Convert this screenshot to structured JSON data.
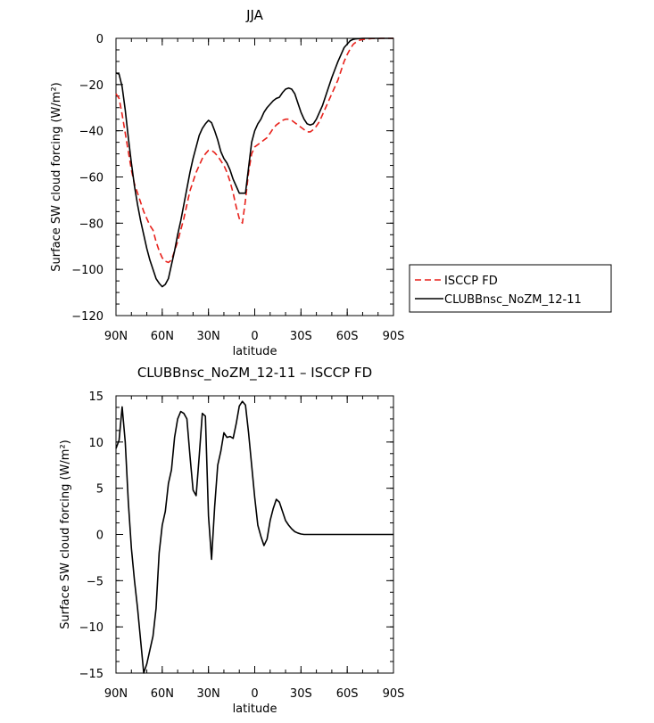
{
  "chart_data": [
    {
      "type": "line",
      "title": "JJA",
      "xlabel": "latitude",
      "ylabel": "Surface SW cloud forcing (W/m²)",
      "xlim": [
        90,
        -90
      ],
      "ylim": [
        -120,
        0
      ],
      "x_ticks": [
        {
          "value": 90,
          "label": "90N"
        },
        {
          "value": 60,
          "label": "60N"
        },
        {
          "value": 30,
          "label": "30N"
        },
        {
          "value": 0,
          "label": "0"
        },
        {
          "value": -30,
          "label": "30S"
        },
        {
          "value": -60,
          "label": "60S"
        },
        {
          "value": -90,
          "label": "90S"
        }
      ],
      "y_ticks": [
        0,
        -20,
        -40,
        -60,
        -80,
        -100,
        -120
      ],
      "legend_position": "right",
      "series": [
        {
          "name": "ISCCP FD",
          "color": "#e8211b",
          "dash": true,
          "x": [
            90,
            88,
            86,
            84,
            82,
            80,
            78,
            76,
            74,
            72,
            70,
            68,
            66,
            64,
            62,
            60,
            58,
            56,
            54,
            52,
            50,
            48,
            46,
            44,
            42,
            40,
            38,
            36,
            34,
            32,
            30,
            28,
            26,
            24,
            22,
            20,
            18,
            16,
            14,
            12,
            10,
            8,
            6,
            4,
            2,
            0,
            -2,
            -4,
            -6,
            -8,
            -10,
            -12,
            -14,
            -16,
            -18,
            -20,
            -22,
            -24,
            -26,
            -28,
            -30,
            -32,
            -34,
            -36,
            -38,
            -40,
            -42,
            -44,
            -46,
            -48,
            -50,
            -52,
            -54,
            -56,
            -58,
            -60,
            -62,
            -64,
            -66,
            -68,
            -70,
            -72,
            -74,
            -76,
            -78,
            -80,
            -82,
            -84,
            -86,
            -88,
            -90
          ],
          "y": [
            -24,
            -26,
            -33,
            -41,
            -49,
            -57,
            -63,
            -67,
            -71,
            -75,
            -78,
            -81,
            -83,
            -88,
            -92,
            -95,
            -96.5,
            -97,
            -96,
            -92,
            -88,
            -83,
            -78,
            -72,
            -66,
            -62,
            -58,
            -55,
            -52,
            -50,
            -48.5,
            -48.5,
            -49.5,
            -51,
            -53,
            -55,
            -58,
            -62,
            -67,
            -73,
            -78,
            -80,
            -70,
            -58,
            -50,
            -47,
            -46,
            -45,
            -44,
            -43,
            -41,
            -39,
            -37.5,
            -36.5,
            -35.5,
            -35,
            -35,
            -35.5,
            -36.5,
            -37.5,
            -38.5,
            -39.5,
            -40.5,
            -40.5,
            -39.5,
            -38,
            -36,
            -33,
            -30,
            -27,
            -24,
            -21,
            -18,
            -14,
            -10,
            -7,
            -4.5,
            -2.5,
            -1.5,
            -0.8,
            -0.5,
            -0.3,
            -0.2,
            -0.1,
            -0.1,
            -0.1,
            0,
            0,
            0,
            0,
            0
          ]
        },
        {
          "name": "CLUBBnsc_NoZM_12-11",
          "color": "#000000",
          "dash": false,
          "x": [
            90,
            88,
            86,
            84,
            82,
            80,
            78,
            76,
            74,
            72,
            70,
            68,
            66,
            64,
            62,
            60,
            58,
            56,
            54,
            52,
            50,
            48,
            46,
            44,
            42,
            40,
            38,
            36,
            34,
            32,
            30,
            28,
            26,
            24,
            22,
            20,
            18,
            16,
            14,
            12,
            10,
            8,
            6,
            4,
            2,
            0,
            -2,
            -4,
            -6,
            -8,
            -10,
            -12,
            -14,
            -16,
            -18,
            -20,
            -22,
            -24,
            -26,
            -28,
            -30,
            -32,
            -34,
            -36,
            -38,
            -40,
            -42,
            -44,
            -46,
            -48,
            -50,
            -52,
            -54,
            -56,
            -58,
            -60,
            -62,
            -64,
            -66,
            -68,
            -70,
            -72,
            -74,
            -76,
            -78,
            -80,
            -82,
            -84,
            -86,
            -88,
            -90
          ],
          "y": [
            -15,
            -15.5,
            -21,
            -31,
            -43,
            -54,
            -64,
            -72,
            -79,
            -85,
            -91,
            -96,
            -100,
            -104,
            -106,
            -107.5,
            -106.5,
            -104,
            -98,
            -92,
            -85,
            -79,
            -72,
            -65,
            -58,
            -52,
            -47,
            -42,
            -39,
            -37,
            -35.5,
            -36.5,
            -40,
            -44,
            -49,
            -52,
            -54,
            -57,
            -61,
            -64,
            -67,
            -67,
            -67,
            -56,
            -45,
            -40,
            -37,
            -35,
            -32,
            -30,
            -28.5,
            -27,
            -26,
            -25.5,
            -23.5,
            -22,
            -21.5,
            -22,
            -24,
            -28,
            -32,
            -35,
            -37,
            -37.5,
            -37,
            -35,
            -32,
            -29,
            -25,
            -21,
            -17,
            -13.5,
            -10,
            -7,
            -4,
            -2.5,
            -1,
            -0.4,
            -0.2,
            -0.1,
            0,
            0,
            0,
            0,
            0,
            0,
            0,
            0,
            0,
            0,
            0
          ]
        }
      ]
    },
    {
      "type": "line",
      "title": "CLUBBnsc_NoZM_12-11 – ISCCP FD",
      "xlabel": "latitude",
      "ylabel": "Surface SW cloud forcing (W/m²)",
      "xlim": [
        90,
        -90
      ],
      "ylim": [
        -15,
        15
      ],
      "x_ticks": [
        {
          "value": 90,
          "label": "90N"
        },
        {
          "value": 60,
          "label": "60N"
        },
        {
          "value": 30,
          "label": "30N"
        },
        {
          "value": 0,
          "label": "0"
        },
        {
          "value": -30,
          "label": "30S"
        },
        {
          "value": -60,
          "label": "60S"
        },
        {
          "value": -90,
          "label": "90S"
        }
      ],
      "y_ticks": [
        15,
        10,
        5,
        0,
        -5,
        -10,
        -15
      ],
      "series": [
        {
          "color": "#000000",
          "dash": false,
          "x": [
            90,
            88,
            86,
            84,
            82,
            80,
            78,
            76,
            74,
            72,
            70,
            68,
            66,
            64,
            62,
            60,
            58,
            56,
            54,
            52,
            50,
            48,
            46,
            44,
            42,
            40,
            38,
            36,
            34,
            32,
            30,
            28,
            26,
            24,
            22,
            20,
            18,
            16,
            14,
            12,
            10,
            8,
            6,
            4,
            2,
            0,
            -2,
            -4,
            -6,
            -8,
            -10,
            -12,
            -14,
            -16,
            -18,
            -20,
            -22,
            -24,
            -26,
            -28,
            -30,
            -32,
            -34,
            -36,
            -38,
            -40,
            -42,
            -44,
            -46,
            -48,
            -50,
            -52,
            -54,
            -56,
            -58,
            -60,
            -62,
            -64,
            -66,
            -68,
            -70,
            -72,
            -74,
            -76,
            -78,
            -80,
            -82,
            -84,
            -86,
            -88,
            -90
          ],
          "y": [
            9.3,
            10.2,
            13.8,
            10,
            3.5,
            -1.5,
            -5,
            -8,
            -11.5,
            -15,
            -14,
            -12.5,
            -11,
            -8,
            -2,
            1,
            2.5,
            5.5,
            7,
            10.5,
            12.5,
            13.3,
            13.1,
            12.5,
            8.5,
            4.8,
            4.2,
            8.5,
            13.1,
            12.8,
            2,
            -2.7,
            3,
            7.5,
            9,
            11,
            10.5,
            10.6,
            10.4,
            12,
            13.9,
            14.4,
            14,
            11,
            7.5,
            4,
            1,
            -0.2,
            -1.2,
            -0.5,
            1.5,
            2.8,
            3.8,
            3.5,
            2.5,
            1.5,
            1,
            0.6,
            0.3,
            0.15,
            0.05,
            0,
            0,
            0,
            0,
            0,
            0,
            0,
            0,
            0,
            0,
            0,
            0,
            0,
            0,
            0,
            0,
            0,
            0,
            0,
            0,
            0,
            0,
            0,
            0,
            0,
            0,
            0,
            0,
            0,
            0
          ]
        }
      ]
    }
  ]
}
